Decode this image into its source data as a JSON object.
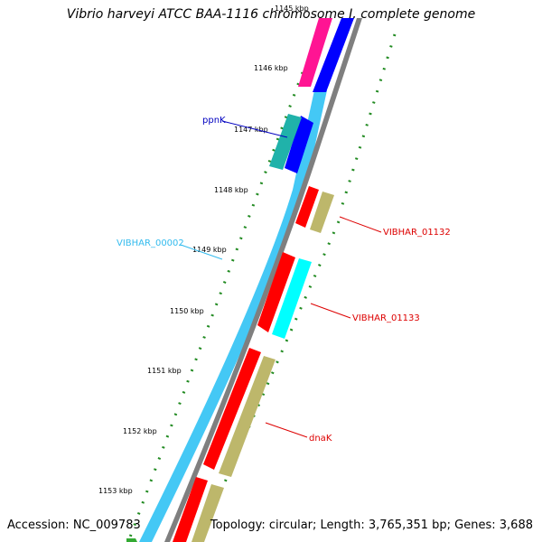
{
  "title": "Vibrio harveyi ATCC BAA-1116 chromosome I, complete genome",
  "footer": {
    "accession": "Accession: NC_009783",
    "summary": "Topology: circular; Length: 3,765,351 bp; Genes: 3,688"
  },
  "scale": {
    "tick_labels": [
      "1145 kbp",
      "1146 kbp",
      "1147 kbp",
      "1148 kbp",
      "1149 kbp",
      "1150 kbp",
      "1151 kbp",
      "1152 kbp",
      "1153 kbp"
    ]
  },
  "gene_labels": [
    {
      "text": "ppnK",
      "color": "#0000c0"
    },
    {
      "text": "VIBHAR_00002",
      "color": "#33bbee"
    },
    {
      "text": "VIBHAR_01132",
      "color": "#dd0000"
    },
    {
      "text": "VIBHAR_01133",
      "color": "#dd0000"
    },
    {
      "text": "dnaK",
      "color": "#dd0000"
    }
  ],
  "colors": {
    "cds_forward": "#ff0000",
    "rrna_khaki": "#bdb76b",
    "light_blue_backbone": "#44c8f5",
    "blue": "#0000ff",
    "pink": "#ff1493",
    "teal": "#20b2aa",
    "cyan": "#00ffff",
    "grey": "#808080",
    "green_ticks": "#228b22"
  }
}
